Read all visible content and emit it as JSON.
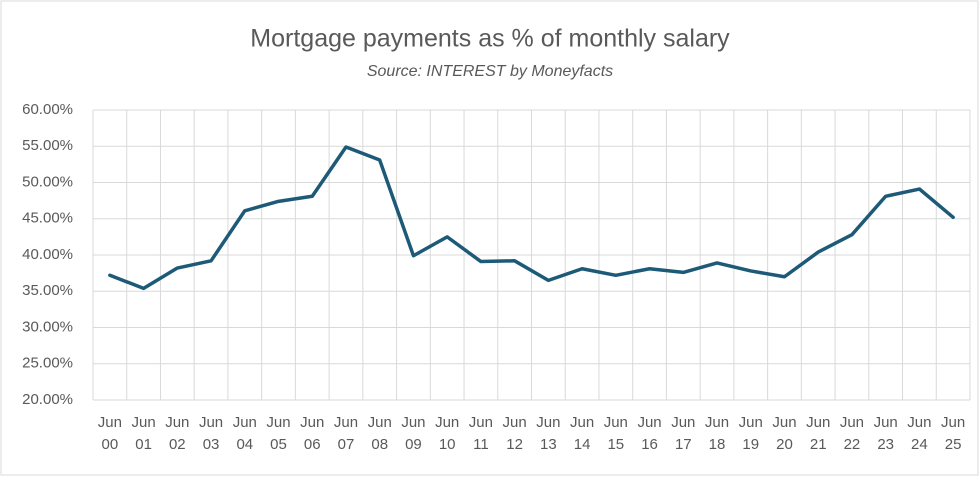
{
  "chart_data": {
    "type": "line",
    "title": "Mortgage payments as % of monthly salary",
    "subtitle": "Source: INTEREST by Moneyfacts",
    "categories": [
      "Jun 00",
      "Jun 01",
      "Jun 02",
      "Jun 03",
      "Jun 04",
      "Jun 05",
      "Jun 06",
      "Jun 07",
      "Jun 08",
      "Jun 09",
      "Jun 10",
      "Jun 11",
      "Jun 12",
      "Jun 13",
      "Jun 14",
      "Jun 15",
      "Jun 16",
      "Jun 17",
      "Jun 18",
      "Jun 19",
      "Jun 20",
      "Jun 21",
      "Jun 22",
      "Jun 23",
      "Jun 24",
      "Jun 25"
    ],
    "values": [
      37.2,
      35.4,
      38.2,
      39.2,
      46.1,
      47.4,
      48.1,
      54.9,
      53.1,
      39.9,
      42.5,
      39.1,
      39.2,
      36.5,
      38.1,
      37.2,
      38.1,
      37.6,
      38.9,
      37.8,
      37.0,
      40.4,
      42.8,
      48.1,
      49.1,
      45.2
    ],
    "color": "#1d5a78",
    "ylim": [
      20,
      60
    ],
    "yticks": [
      {
        "value": 20,
        "label": "20.00%"
      },
      {
        "value": 25,
        "label": "25.00%"
      },
      {
        "value": 30,
        "label": "30.00%"
      },
      {
        "value": 35,
        "label": "35.00%"
      },
      {
        "value": 40,
        "label": "40.00%"
      },
      {
        "value": 45,
        "label": "45.00%"
      },
      {
        "value": 50,
        "label": "50.00%"
      },
      {
        "value": 55,
        "label": "55.00%"
      },
      {
        "value": 60,
        "label": "60.00%"
      }
    ],
    "grid": true
  }
}
